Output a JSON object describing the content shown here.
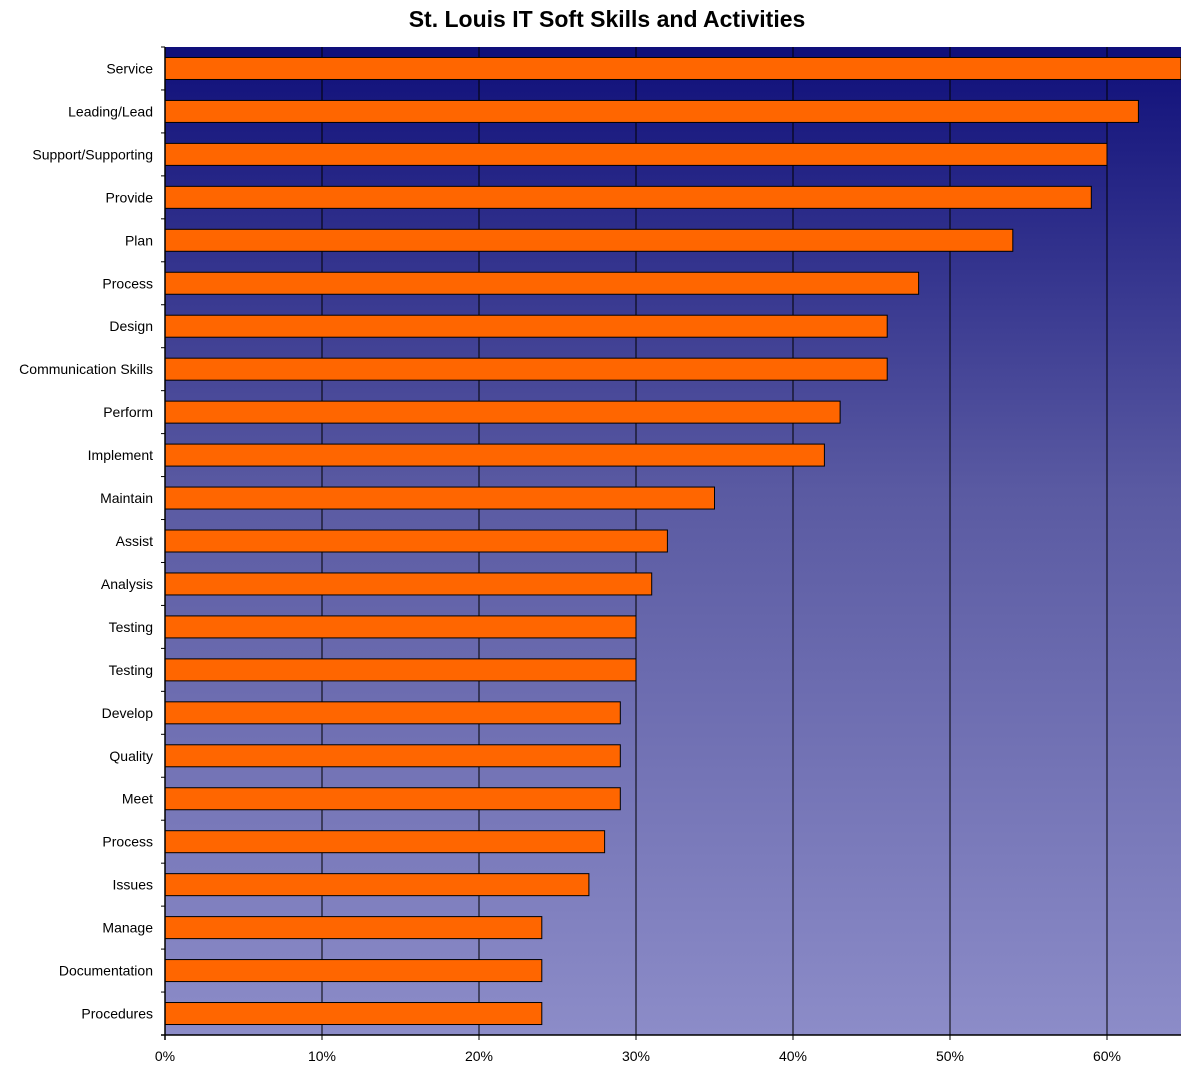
{
  "chart_data": {
    "type": "bar",
    "orientation": "horizontal",
    "title": "St. Louis IT Soft Skills and Activities",
    "xlabel": "",
    "ylabel": "",
    "categories": [
      "Service",
      "Leading/Lead",
      "Support/Supporting",
      "Provide",
      "Plan",
      "Process",
      "Design",
      "Communication Skills",
      "Perform",
      "Implement",
      "Maintain",
      "Assist",
      "Analysis",
      "Testing",
      "Testing",
      "Develop",
      "Quality",
      "Meet",
      "Process",
      "Issues",
      "Manage",
      "Documentation",
      "Procedures"
    ],
    "values": [
      0.66,
      0.62,
      0.6,
      0.59,
      0.54,
      0.48,
      0.46,
      0.46,
      0.43,
      0.42,
      0.35,
      0.32,
      0.31,
      0.3,
      0.3,
      0.29,
      0.29,
      0.29,
      0.28,
      0.27,
      0.24,
      0.24,
      0.24
    ],
    "xlim": [
      0,
      0.65
    ],
    "xticks": [
      0,
      0.1,
      0.2,
      0.3,
      0.4,
      0.5,
      0.6
    ],
    "xtick_labels": [
      "0%",
      "10%",
      "20%",
      "30%",
      "40%",
      "50%",
      "60%"
    ],
    "grid": "vertical",
    "legend": "none",
    "colors": {
      "bar_fill": "#ff6600",
      "bar_stroke": "#000000",
      "plot_bg_top": "#0f0f7a",
      "plot_bg_bottom": "#8c8cc8",
      "grid": "#000000",
      "text": "#000000"
    }
  }
}
